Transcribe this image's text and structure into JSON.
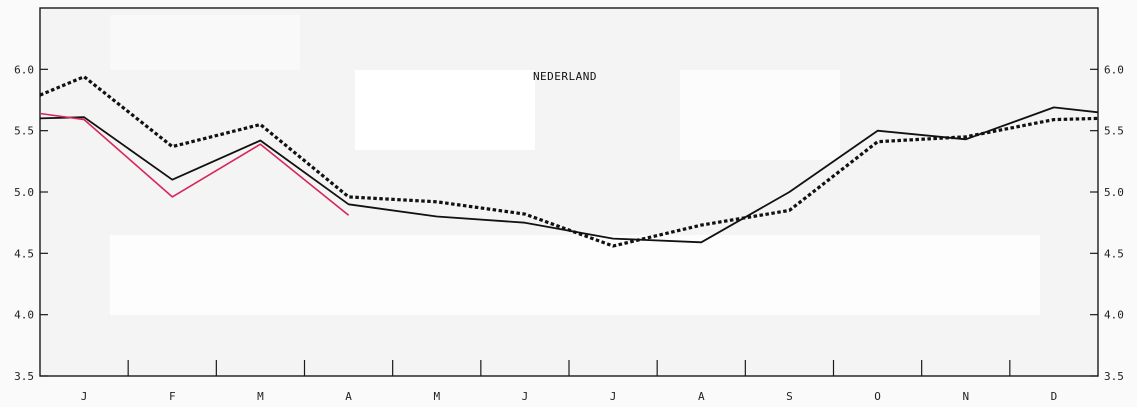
{
  "chart_data": {
    "type": "line",
    "title": "NEDERLAND",
    "xlabel": "",
    "ylabel": "",
    "categories": [
      "J",
      "F",
      "M",
      "A",
      "M",
      "J",
      "J",
      "A",
      "S",
      "O",
      "N",
      "D"
    ],
    "ylim": [
      3.5,
      6.5
    ],
    "yticks": [
      3.5,
      4.0,
      4.5,
      5.0,
      5.5,
      6.0
    ],
    "ytick_labels_left": [
      "3.5",
      "4.0",
      "4.5",
      "5.0",
      "5.5",
      "6.0"
    ],
    "ytick_labels_right": [
      "3.5",
      "4.0",
      "4.5",
      "5.0",
      "5.5",
      "6.0"
    ],
    "grid": false,
    "series": [
      {
        "style": "solid",
        "color": "#111111",
        "points": [
          {
            "x": 0.0,
            "y": 5.6
          },
          {
            "x": 0.5,
            "y": 5.61
          },
          {
            "x": 1.5,
            "y": 5.1
          },
          {
            "x": 2.5,
            "y": 5.42
          },
          {
            "x": 3.5,
            "y": 4.9
          },
          {
            "x": 4.5,
            "y": 4.8
          },
          {
            "x": 5.5,
            "y": 4.75
          },
          {
            "x": 6.5,
            "y": 4.62
          },
          {
            "x": 7.5,
            "y": 4.59
          },
          {
            "x": 8.5,
            "y": 5.0
          },
          {
            "x": 9.5,
            "y": 5.5
          },
          {
            "x": 10.5,
            "y": 5.43
          },
          {
            "x": 11.5,
            "y": 5.69
          },
          {
            "x": 12.0,
            "y": 5.65
          }
        ]
      },
      {
        "style": "dashed",
        "color": "#111111",
        "points": [
          {
            "x": 0.0,
            "y": 5.79
          },
          {
            "x": 0.5,
            "y": 5.94
          },
          {
            "x": 1.5,
            "y": 5.37
          },
          {
            "x": 2.5,
            "y": 5.55
          },
          {
            "x": 3.5,
            "y": 4.96
          },
          {
            "x": 4.5,
            "y": 4.92
          },
          {
            "x": 5.5,
            "y": 4.82
          },
          {
            "x": 6.5,
            "y": 4.56
          },
          {
            "x": 7.5,
            "y": 4.73
          },
          {
            "x": 8.5,
            "y": 4.85
          },
          {
            "x": 9.5,
            "y": 5.41
          },
          {
            "x": 10.5,
            "y": 5.45
          },
          {
            "x": 11.5,
            "y": 5.59
          },
          {
            "x": 12.0,
            "y": 5.6
          }
        ]
      },
      {
        "style": "solid",
        "color": "#d6265a",
        "points": [
          {
            "x": 0.0,
            "y": 5.64
          },
          {
            "x": 0.5,
            "y": 5.59
          },
          {
            "x": 1.5,
            "y": 4.96
          },
          {
            "x": 2.5,
            "y": 5.39
          },
          {
            "x": 3.5,
            "y": 4.81
          }
        ]
      }
    ]
  }
}
